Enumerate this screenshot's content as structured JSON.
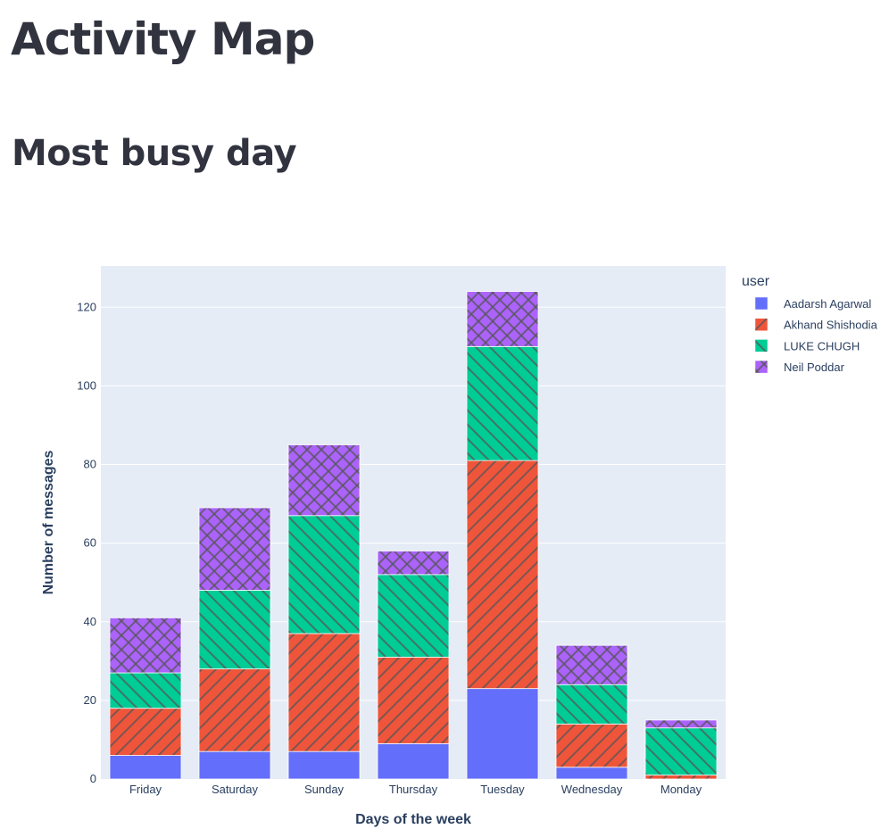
{
  "page": {
    "title": "Activity Map",
    "section_title": "Most busy day"
  },
  "chart_data": {
    "type": "bar",
    "barmode": "stack",
    "categories": [
      "Friday",
      "Saturday",
      "Sunday",
      "Thursday",
      "Tuesday",
      "Wednesday",
      "Monday"
    ],
    "series": [
      {
        "name": "Aadarsh Agarwal",
        "values": [
          6,
          7,
          7,
          9,
          23,
          3,
          0
        ],
        "color": "#636efa",
        "pattern": "none"
      },
      {
        "name": "Akhand Shishodia",
        "values": [
          12,
          21,
          30,
          22,
          58,
          11,
          1
        ],
        "color": "#ef553b",
        "pattern": "forward-diagonal"
      },
      {
        "name": "LUKE CHUGH",
        "values": [
          9,
          20,
          30,
          21,
          29,
          10,
          12
        ],
        "color": "#00cc96",
        "pattern": "back-diagonal"
      },
      {
        "name": "Neil Poddar",
        "values": [
          14,
          21,
          18,
          6,
          14,
          10,
          2
        ],
        "color": "#ab63fa",
        "pattern": "cross"
      }
    ],
    "xlabel": "Days of the week",
    "ylabel": "Number of messages",
    "legend_title": "user",
    "legend_position": "right",
    "yticks": [
      0,
      20,
      40,
      60,
      80,
      100,
      120
    ],
    "ylim": [
      0,
      130.5
    ],
    "grid": true,
    "plot_background": "#e5ecf6"
  }
}
